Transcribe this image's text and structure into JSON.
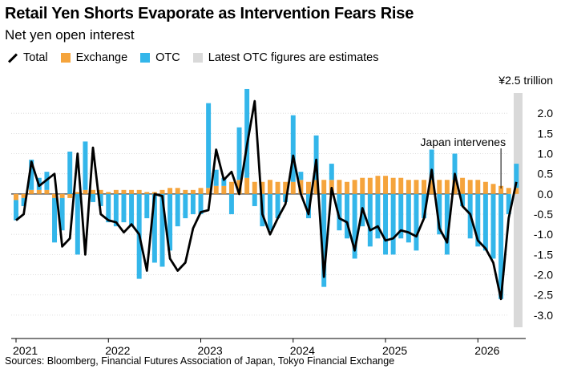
{
  "title": "Retail Yen Shorts Evaporate as Intervention Fears Rise",
  "subtitle": "Net yen open interest",
  "legend": [
    {
      "label": "Total",
      "color": "#000000",
      "kind": "line"
    },
    {
      "label": "Exchange",
      "color": "#f5a43c",
      "kind": "box"
    },
    {
      "label": "OTC",
      "color": "#33b6ea",
      "kind": "box"
    },
    {
      "label": "Latest OTC figures are estimates",
      "color": "#d9d9d9",
      "kind": "box"
    }
  ],
  "unit_label": "¥2.5 trillion",
  "annotation": "Japan intervenes",
  "source": "Sources: Bloomberg, Financial Futures Association of Japan, Tokyo Financial Exchange",
  "chart_data": {
    "type": "bar",
    "stacked": true,
    "x_tick_labels": [
      "2021",
      "2022",
      "2023",
      "2024",
      "2025",
      "2026"
    ],
    "y_tick_labels": [
      "2.0",
      "1.5",
      "1.0",
      "0.5",
      "0.0",
      "-0.5",
      "-1.0",
      "-1.5",
      "-2.0",
      "-2.5",
      "-3.0"
    ],
    "ylim": [
      -3.3,
      2.5
    ],
    "x_start": "2021-01",
    "x_end": "2026-06",
    "estimate_shading": "2026-06",
    "annotation": {
      "text": "Japan intervenes",
      "month": "2026-04"
    },
    "series": [
      {
        "name": "Exchange",
        "color": "#f5a43c",
        "values": [
          -0.15,
          -0.1,
          0.1,
          0.1,
          0.1,
          -0.1,
          -0.1,
          -0.1,
          0.05,
          0.1,
          0.1,
          0.1,
          0.05,
          0.1,
          0.1,
          0.1,
          0.1,
          0.05,
          0.05,
          0.1,
          0.15,
          0.15,
          0.1,
          0.1,
          0.15,
          0.15,
          0.2,
          0.2,
          0.3,
          0.35,
          0.4,
          0.3,
          0.3,
          0.35,
          0.3,
          0.3,
          0.3,
          0.35,
          0.3,
          0.35,
          0.35,
          0.35,
          0.35,
          0.3,
          0.35,
          0.4,
          0.4,
          0.45,
          0.45,
          0.4,
          0.4,
          0.35,
          0.35,
          0.35,
          0.35,
          0.35,
          0.35,
          0.35,
          0.4,
          0.35,
          0.35,
          0.3,
          0.25,
          0.2,
          0.15,
          0.15
        ]
      },
      {
        "name": "OTC",
        "color": "#33b6ea",
        "values": [
          -0.5,
          -0.2,
          0.75,
          0.3,
          0.45,
          -1.1,
          -0.8,
          1.05,
          -1.5,
          1.2,
          -0.2,
          -0.3,
          -0.7,
          -0.8,
          -0.7,
          -0.8,
          -2.1,
          -0.6,
          -1.7,
          -1.8,
          -1.4,
          -0.8,
          -0.6,
          -0.5,
          -0.5,
          2.1,
          0.4,
          0.2,
          -0.5,
          1.3,
          2.2,
          -0.3,
          -0.8,
          -0.9,
          -0.6,
          -0.2,
          1.65,
          0.2,
          -0.6,
          1.1,
          -2.3,
          0.4,
          -0.9,
          -1.1,
          -1.6,
          -0.8,
          -1.3,
          -1.1,
          -1.5,
          -1.5,
          -1.1,
          -1.2,
          -1.4,
          -0.6,
          0.75,
          -1.0,
          -1.5,
          0.65,
          -0.3,
          -1.1,
          -1.3,
          -1.4,
          -1.6,
          -2.6,
          -0.5,
          0.6
        ]
      },
      {
        "name": "Total",
        "color": "#000000",
        "values": [
          -0.65,
          -0.5,
          0.8,
          0.2,
          0.35,
          0.5,
          -1.3,
          -1.1,
          1.0,
          -1.5,
          1.15,
          -0.5,
          -0.65,
          -0.7,
          -0.95,
          -0.75,
          -1.0,
          -1.9,
          0.0,
          -0.05,
          -1.6,
          -1.9,
          -1.7,
          -0.85,
          -0.45,
          -0.4,
          1.1,
          0.35,
          0.55,
          0.0,
          1.2,
          2.3,
          -0.5,
          -1.0,
          -0.6,
          -0.25,
          0.95,
          0.0,
          -0.5,
          0.85,
          -2.05,
          0.15,
          -0.6,
          -0.7,
          -1.4,
          -0.35,
          -0.9,
          -0.8,
          -1.15,
          -1.1,
          -0.9,
          -0.95,
          -1.05,
          -0.6,
          0.6,
          -0.85,
          -1.2,
          0.5,
          -0.3,
          -0.5,
          -1.15,
          -1.35,
          -1.7,
          -2.6,
          -0.6,
          0.3
        ]
      }
    ]
  }
}
